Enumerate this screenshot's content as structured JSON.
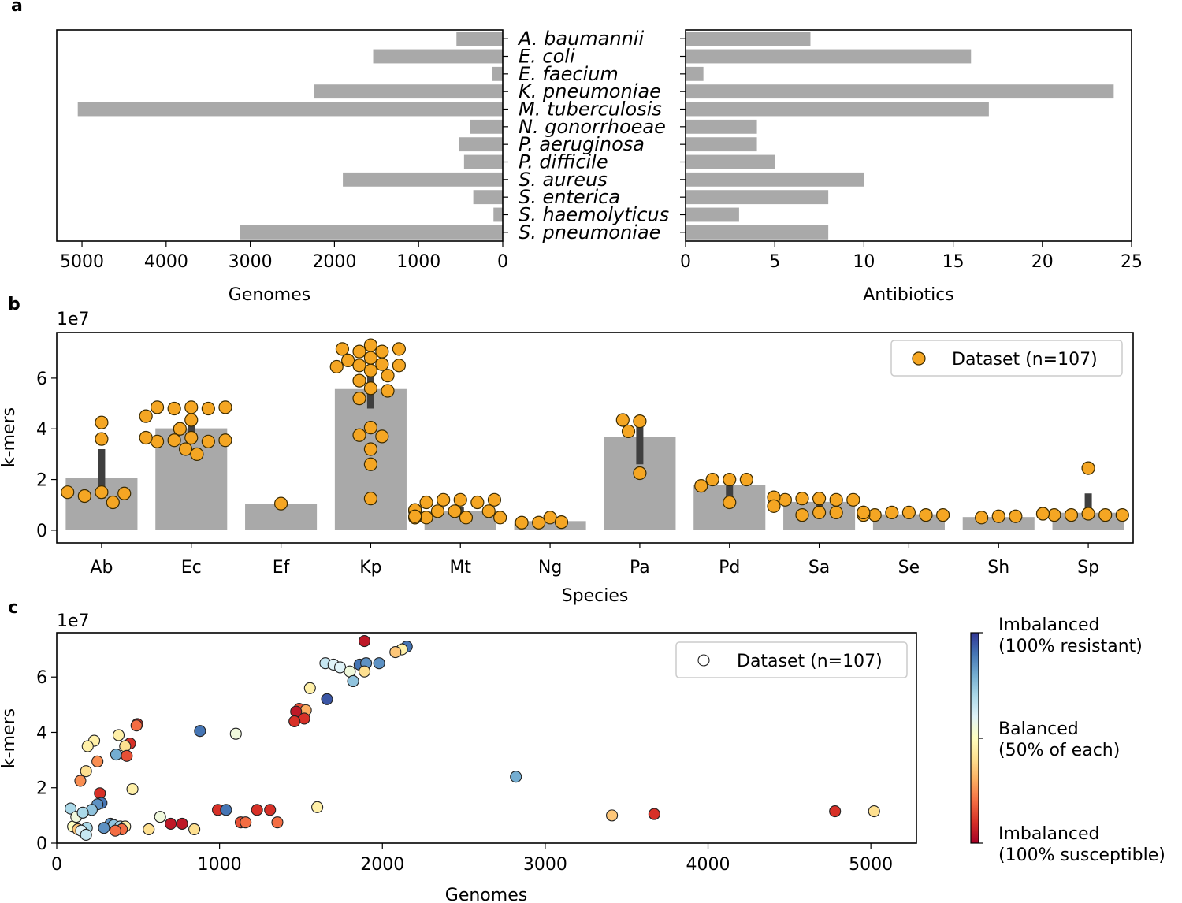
{
  "panels": {
    "a": "a",
    "b": "b",
    "c": "c"
  },
  "chart_data": [
    {
      "id": "a-genomes",
      "type": "bar",
      "orientation": "horizontal",
      "xlabel": "Genomes",
      "xlim": [
        5300,
        0
      ],
      "xticks": [
        5000,
        4000,
        3000,
        2000,
        1000,
        0
      ],
      "categories": [
        "A. baumannii",
        "E. coli",
        "E. faecium",
        "K. pneumoniae",
        "M. tuberculosis",
        "N. gonorrhoeae",
        "P. aeruginosa",
        "P. difficile",
        "S. aureus",
        "S. enterica",
        "S. haemolyticus",
        "S. pneumoniae"
      ],
      "values": [
        550,
        1540,
        130,
        2240,
        5050,
        390,
        520,
        460,
        1900,
        350,
        110,
        3120
      ]
    },
    {
      "id": "a-antibiotics",
      "type": "bar",
      "orientation": "horizontal",
      "xlabel": "Antibiotics",
      "xlim": [
        0,
        25
      ],
      "xticks": [
        0,
        5,
        10,
        15,
        20,
        25
      ],
      "categories": [
        "A. baumannii",
        "E. coli",
        "E. faecium",
        "K. pneumoniae",
        "M. tuberculosis",
        "N. gonorrhoeae",
        "P. aeruginosa",
        "P. difficile",
        "S. aureus",
        "S. enterica",
        "S. haemolyticus",
        "S. pneumoniae"
      ],
      "values": [
        7,
        16,
        1,
        24,
        17,
        4,
        4,
        5,
        10,
        8,
        3,
        8
      ]
    },
    {
      "id": "b",
      "type": "bar",
      "xlabel": "Species",
      "ylabel": "k-mers",
      "offset_label": "1e7",
      "ylim": [
        -0.5,
        7.8
      ],
      "yticks": [
        0,
        2,
        4,
        6
      ],
      "categories": [
        "Ab",
        "Ec",
        "Ef",
        "Kp",
        "Mt",
        "Ng",
        "Pa",
        "Pd",
        "Sa",
        "Se",
        "Sh",
        "Sp"
      ],
      "values": [
        2.08,
        4.02,
        1.03,
        5.57,
        0.75,
        0.36,
        3.68,
        1.77,
        1.12,
        0.63,
        0.52,
        0.69
      ],
      "error_bars": [
        [
          1.25,
          3.2
        ],
        [
          3.6,
          4.35
        ],
        [
          1.03,
          1.03
        ],
        [
          4.8,
          6.3
        ],
        [
          0.6,
          0.9
        ],
        [
          0.3,
          0.42
        ],
        [
          2.6,
          4.2
        ],
        [
          1.2,
          2.0
        ],
        [
          0.8,
          1.4
        ],
        [
          0.55,
          0.7
        ],
        [
          0.5,
          0.55
        ],
        [
          0.5,
          1.45
        ]
      ],
      "points": [
        [
          1.5,
          1.35,
          1.1,
          1.45,
          1.5,
          4.25,
          3.6
        ],
        [
          4.85,
          4.8,
          4.8,
          4.85,
          4.85,
          4.35,
          4.5,
          4.0,
          3.65,
          3.55,
          3.5,
          3.5,
          3.55,
          3.65,
          3.2,
          3.0
        ],
        [
          1.05
        ],
        [
          7.3,
          7.05,
          7.05,
          7.15,
          7.15,
          6.8,
          6.7,
          6.55,
          6.5,
          6.5,
          6.45,
          6.3,
          6.1,
          5.9,
          5.6,
          5.5,
          5.2,
          4.05,
          3.75,
          3.7,
          3.2,
          2.6,
          1.25
        ],
        [
          1.2,
          1.2,
          1.1,
          1.1,
          1.2,
          0.75,
          0.75,
          0.8,
          0.75,
          0.75,
          0.8,
          0.5,
          0.5,
          0.5,
          0.5,
          0.5,
          0.55
        ],
        [
          0.5,
          0.3,
          0.32,
          0.3
        ],
        [
          4.3,
          4.35,
          3.9,
          2.25
        ],
        [
          2.0,
          2.0,
          2.0,
          1.75,
          1.1
        ],
        [
          1.25,
          1.25,
          1.2,
          1.2,
          1.2,
          1.3,
          0.7,
          0.6,
          0.95,
          0.7
        ],
        [
          0.7,
          0.7,
          0.6,
          0.6,
          0.6,
          0.6,
          0.7,
          0.7
        ],
        [
          0.55,
          0.5,
          0.55
        ],
        [
          0.65,
          0.6,
          0.6,
          0.6,
          0.6,
          0.65,
          0.65,
          2.45
        ]
      ],
      "legend": "Dataset (n=107)",
      "legend_position": "upper right",
      "bar_color": "#a9a9a9",
      "point_color": "#f5a623"
    },
    {
      "id": "c",
      "type": "scatter",
      "xlabel": "Genomes",
      "ylabel": "k-mers",
      "offset_label": "1e7",
      "xlim": [
        0,
        5280
      ],
      "ylim": [
        0,
        7.6
      ],
      "xticks": [
        0,
        1000,
        2000,
        3000,
        4000,
        5000
      ],
      "yticks": [
        0,
        2,
        4,
        6
      ],
      "legend": "Dataset (n=107)",
      "legend_position": "upper right",
      "colorscale": "RdYlBu (0 = 100% susceptible, 0.5 = balanced, 1 = 100% resistant)",
      "points": [
        {
          "x": 1890,
          "y": 7.3,
          "c": 0.05
        },
        {
          "x": 2150,
          "y": 7.1,
          "c": 0.9
        },
        {
          "x": 2120,
          "y": 7.0,
          "c": 0.45
        },
        {
          "x": 2080,
          "y": 6.9,
          "c": 0.35
        },
        {
          "x": 1650,
          "y": 6.5,
          "c": 0.65
        },
        {
          "x": 1700,
          "y": 6.45,
          "c": 0.6
        },
        {
          "x": 1740,
          "y": 6.35,
          "c": 0.6
        },
        {
          "x": 1800,
          "y": 6.2,
          "c": 0.55
        },
        {
          "x": 1860,
          "y": 6.45,
          "c": 0.9
        },
        {
          "x": 1900,
          "y": 6.5,
          "c": 0.85
        },
        {
          "x": 1980,
          "y": 6.5,
          "c": 0.85
        },
        {
          "x": 1890,
          "y": 6.2,
          "c": 0.4
        },
        {
          "x": 1820,
          "y": 5.85,
          "c": 0.75
        },
        {
          "x": 1555,
          "y": 5.6,
          "c": 0.45
        },
        {
          "x": 1660,
          "y": 5.2,
          "c": 0.95
        },
        {
          "x": 1490,
          "y": 4.85,
          "c": 0.15
        },
        {
          "x": 1530,
          "y": 4.8,
          "c": 0.3
        },
        {
          "x": 1470,
          "y": 4.75,
          "c": 0.05
        },
        {
          "x": 1520,
          "y": 4.5,
          "c": 0.1
        },
        {
          "x": 1460,
          "y": 4.4,
          "c": 0.1
        },
        {
          "x": 880,
          "y": 4.05,
          "c": 0.9
        },
        {
          "x": 1100,
          "y": 3.95,
          "c": 0.55
        },
        {
          "x": 495,
          "y": 4.3,
          "c": 0.1
        },
        {
          "x": 490,
          "y": 4.25,
          "c": 0.2
        },
        {
          "x": 380,
          "y": 3.9,
          "c": 0.45
        },
        {
          "x": 230,
          "y": 3.7,
          "c": 0.45
        },
        {
          "x": 190,
          "y": 3.5,
          "c": 0.45
        },
        {
          "x": 450,
          "y": 3.6,
          "c": 0.1
        },
        {
          "x": 420,
          "y": 3.5,
          "c": 0.4
        },
        {
          "x": 365,
          "y": 3.2,
          "c": 0.8
        },
        {
          "x": 430,
          "y": 3.15,
          "c": 0.15
        },
        {
          "x": 250,
          "y": 2.95,
          "c": 0.25
        },
        {
          "x": 180,
          "y": 2.6,
          "c": 0.4
        },
        {
          "x": 145,
          "y": 2.25,
          "c": 0.25
        },
        {
          "x": 2820,
          "y": 2.4,
          "c": 0.8
        },
        {
          "x": 465,
          "y": 1.95,
          "c": 0.45
        },
        {
          "x": 265,
          "y": 1.8,
          "c": 0.1
        },
        {
          "x": 275,
          "y": 1.45,
          "c": 0.9
        },
        {
          "x": 250,
          "y": 1.4,
          "c": 0.85
        },
        {
          "x": 85,
          "y": 1.25,
          "c": 0.7
        },
        {
          "x": 215,
          "y": 1.2,
          "c": 0.75
        },
        {
          "x": 1600,
          "y": 1.3,
          "c": 0.45
        },
        {
          "x": 990,
          "y": 1.2,
          "c": 0.1
        },
        {
          "x": 1040,
          "y": 1.2,
          "c": 0.9
        },
        {
          "x": 1230,
          "y": 1.2,
          "c": 0.1
        },
        {
          "x": 1310,
          "y": 1.2,
          "c": 0.1
        },
        {
          "x": 5020,
          "y": 1.15,
          "c": 0.4
        },
        {
          "x": 4780,
          "y": 1.15,
          "c": 0.1
        },
        {
          "x": 3670,
          "y": 1.05,
          "c": 0.1
        },
        {
          "x": 3410,
          "y": 1.0,
          "c": 0.35
        },
        {
          "x": 635,
          "y": 0.95,
          "c": 0.55
        },
        {
          "x": 1130,
          "y": 0.75,
          "c": 0.15
        },
        {
          "x": 1160,
          "y": 0.75,
          "c": 0.2
        },
        {
          "x": 1355,
          "y": 0.75,
          "c": 0.2
        },
        {
          "x": 700,
          "y": 0.7,
          "c": 0.05
        },
        {
          "x": 770,
          "y": 0.7,
          "c": 0.05
        },
        {
          "x": 330,
          "y": 0.7,
          "c": 0.85
        },
        {
          "x": 350,
          "y": 0.65,
          "c": 0.75
        },
        {
          "x": 390,
          "y": 0.6,
          "c": 0.7
        },
        {
          "x": 290,
          "y": 0.55,
          "c": 0.85
        },
        {
          "x": 420,
          "y": 0.6,
          "c": 0.45
        },
        {
          "x": 100,
          "y": 0.6,
          "c": 0.5
        },
        {
          "x": 130,
          "y": 0.5,
          "c": 0.35
        },
        {
          "x": 185,
          "y": 0.55,
          "c": 0.7
        },
        {
          "x": 845,
          "y": 0.5,
          "c": 0.4
        },
        {
          "x": 565,
          "y": 0.5,
          "c": 0.4
        },
        {
          "x": 400,
          "y": 0.5,
          "c": 0.2
        },
        {
          "x": 360,
          "y": 0.45,
          "c": 0.2
        },
        {
          "x": 150,
          "y": 0.45,
          "c": 0.6
        },
        {
          "x": 180,
          "y": 0.3,
          "c": 0.65
        },
        {
          "x": 120,
          "y": 0.95,
          "c": 0.55
        },
        {
          "x": 160,
          "y": 1.1,
          "c": 0.7
        }
      ]
    }
  ],
  "colorbar": {
    "top": "Imbalanced",
    "top2": "(100% resistant)",
    "mid": "Balanced",
    "mid2": "(50% of each)",
    "bottom": "Imbalanced",
    "bottom2": "(100% susceptible)",
    "colors": [
      "#a50026",
      "#d73027",
      "#f46d43",
      "#fdae61",
      "#fee090",
      "#ffffbf",
      "#e0f3f8",
      "#abd9e9",
      "#74add1",
      "#4575b4",
      "#313695"
    ]
  }
}
